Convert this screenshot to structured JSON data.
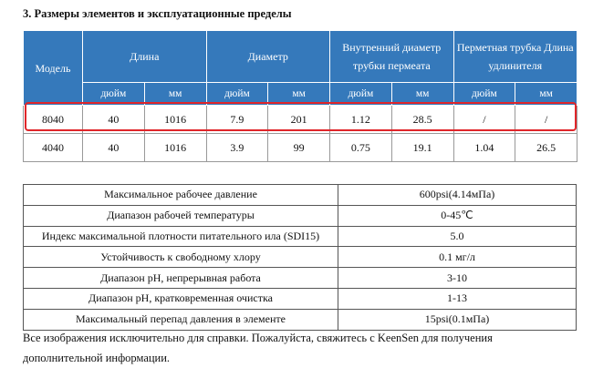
{
  "heading": "3.  Размеры элементов и эксплуатационные пределы",
  "table": {
    "header": [
      "Модель",
      "Длина",
      "Диаметр",
      "Внутренний диаметр трубки пермеата",
      "Перметная трубка Длина удлинителя"
    ],
    "subheader": [
      "дюйм",
      "мм",
      "дюйм",
      "мм",
      "дюйм",
      "мм",
      "дюйм",
      "мм"
    ],
    "rows": [
      [
        "8040",
        "40",
        "1016",
        "7.9",
        "201",
        "1.12",
        "28.5",
        "/",
        "/"
      ],
      [
        "4040",
        "40",
        "1016",
        "3.9",
        "99",
        "0.75",
        "19.1",
        "1.04",
        "26.5"
      ]
    ]
  },
  "limits": {
    "rows": [
      [
        "Максимальное рабочее давление",
        "600psi(4.14мПа)"
      ],
      [
        "Диапазон рабочей температуры",
        "0-45℃"
      ],
      [
        "Индекс максимальной плотности питательного ила (SDI15)",
        "5.0"
      ],
      [
        "Устойчивость к свободному хлору",
        "0.1 мг/л"
      ],
      [
        "Диапазон pH, непрерывная работа",
        "3-10"
      ],
      [
        "Диапазон pH, кратковременная очистка",
        "1-13"
      ],
      [
        "Максимальный перепад давления в элементе",
        "15psi(0.1мПа)"
      ]
    ]
  },
  "note": "Все изображения исключительно для справки. Пожалуйста, свяжитесь с KeenSen для получения дополнительной информации."
}
